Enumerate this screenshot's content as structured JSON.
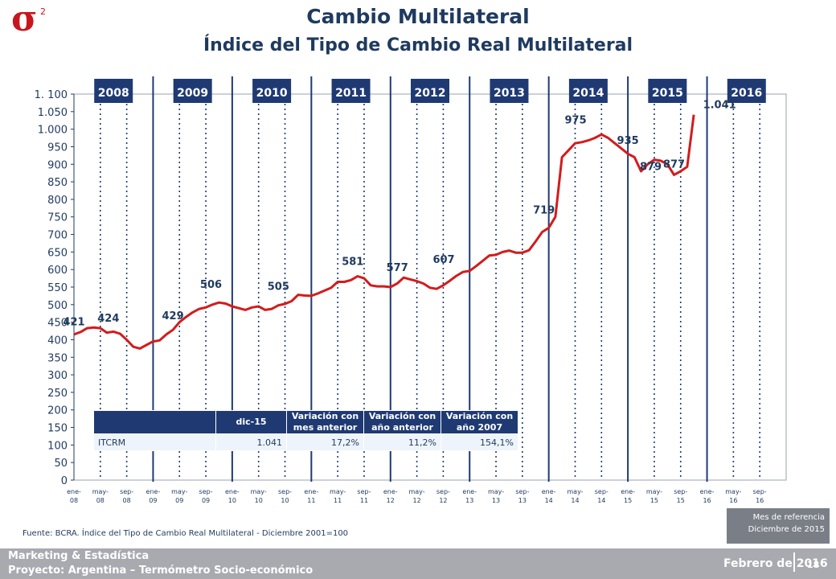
{
  "header": {
    "title": "Cambio Multilateral",
    "subtitle": "Índice del Tipo de Cambio Real Multilateral"
  },
  "logo": {
    "symbol": "σ",
    "superscript": "2"
  },
  "chart_data": {
    "type": "line",
    "line_color": "#d21c1c",
    "ylim": [
      0,
      1100
    ],
    "yticks": [
      "0",
      "50",
      "100",
      "150",
      "200",
      "250",
      "300",
      "350",
      "400",
      "450",
      "500",
      "550",
      "600",
      "650",
      "700",
      "750",
      "800",
      "850",
      "900",
      "950",
      "1.000",
      "1.050",
      "1. 100"
    ],
    "xticks": [
      "ene-08",
      "may-08",
      "sep-08",
      "ene-09",
      "may-09",
      "sep-09",
      "ene-10",
      "may-10",
      "sep-10",
      "ene-11",
      "may-11",
      "sep-11",
      "ene-12",
      "may-12",
      "sep-12",
      "ene-13",
      "may-13",
      "sep-13",
      "ene-14",
      "may-14",
      "sep-14",
      "ene-15",
      "may-15",
      "sep-15",
      "ene-16",
      "may-16",
      "sep-16"
    ],
    "years": [
      "2008",
      "2009",
      "2010",
      "2011",
      "2012",
      "2013",
      "2014",
      "2015",
      "2016"
    ],
    "values": [
      415,
      422,
      433,
      435,
      433,
      420,
      423,
      417,
      400,
      380,
      375,
      385,
      395,
      398,
      415,
      428,
      450,
      465,
      478,
      488,
      492,
      500,
      506,
      503,
      495,
      490,
      485,
      492,
      495,
      485,
      488,
      498,
      502,
      510,
      528,
      526,
      525,
      532,
      540,
      548,
      565,
      565,
      570,
      581,
      575,
      555,
      552,
      552,
      550,
      560,
      577,
      572,
      567,
      560,
      548,
      545,
      555,
      568,
      582,
      593,
      596,
      610,
      625,
      640,
      642,
      650,
      654,
      648,
      648,
      655,
      680,
      707,
      719,
      750,
      920,
      940,
      960,
      963,
      968,
      975,
      985,
      975,
      960,
      945,
      930,
      920,
      880,
      900,
      913,
      910,
      900,
      870,
      880,
      893,
      1041
    ],
    "annotations": [
      {
        "label": "421",
        "x": 0,
        "y": 421
      },
      {
        "label": "424",
        "x": 4,
        "y": 424
      },
      {
        "label": "429",
        "x": 15,
        "y": 429
      },
      {
        "label": "506",
        "x": 22,
        "y": 506
      },
      {
        "label": "505",
        "x": 31,
        "y": 505
      },
      {
        "label": "581",
        "x": 43,
        "y": 581
      },
      {
        "label": "577",
        "x": 50,
        "y": 577
      },
      {
        "label": "607",
        "x": 59,
        "y": 607
      },
      {
        "label": "719",
        "x": 72,
        "y": 719
      },
      {
        "label": "975",
        "x": 79,
        "y": 975
      },
      {
        "label": "935",
        "x": 84,
        "y": 935
      },
      {
        "label": "879",
        "x": 86,
        "y": 879
      },
      {
        "label": "877",
        "x": 91,
        "y": 877
      },
      {
        "label": "1.041",
        "x": 94,
        "y": 1041
      }
    ]
  },
  "table": {
    "headers": [
      "dic-15",
      "Variación con mes anterior",
      "Variación con año anterior",
      "Variación con año 2007"
    ],
    "row": {
      "label": "ITCRM",
      "values": [
        "1.041",
        "17,2%",
        "11,2%",
        "154,1%"
      ]
    }
  },
  "reference": {
    "line1": "Mes de referencia",
    "line2": "Diciembre de 2015"
  },
  "source": "Fuente: BCRA. Índice del Tipo de Cambio Real Multilateral - Diciembre 2001=100",
  "footer": {
    "line1": "Marketing & Estadística",
    "line2": "Proyecto: Argentina – Termómetro Socio-económico",
    "date": "Febrero de 2016",
    "page": "18"
  },
  "colors": {
    "primary": "#1f3a5f",
    "year_box": "#1f3a73",
    "line": "#d21c1c",
    "logo": "#c8161d",
    "footer": "#a8aab0"
  }
}
